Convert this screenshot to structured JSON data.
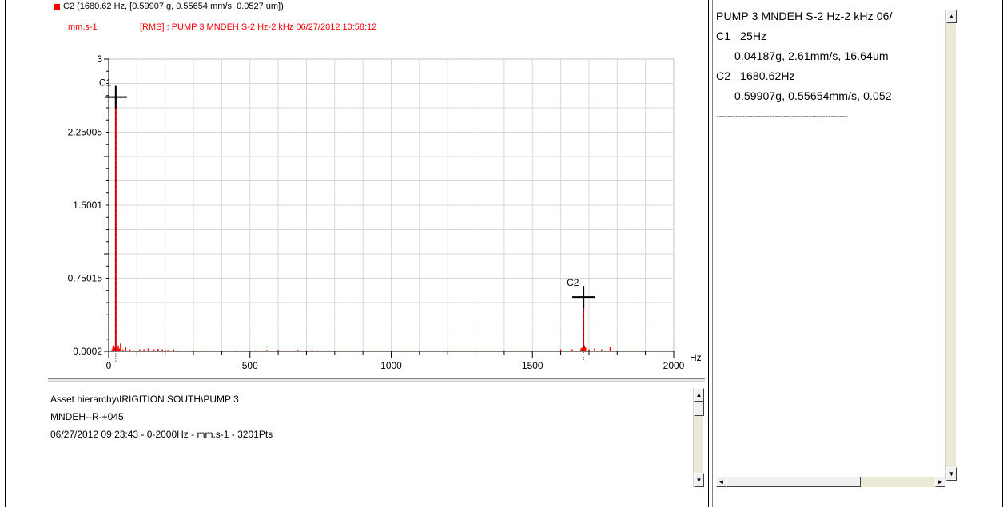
{
  "legend": {
    "cursor_line": "C2 (1680.62 Hz, [0.59907 g, 0.55654 mm/s, 0.0527 um])",
    "unit": "mm.s-1",
    "measurement": "[RMS] : PUMP 3 MNDEH S-2 Hz-2 kHz 06/27/2012 10:58:12",
    "color": "#ff0000"
  },
  "chart_data": {
    "type": "line",
    "xlabel": "Hz",
    "ylabel": "",
    "xlim": [
      0,
      2000
    ],
    "ylim": [
      0.0002,
      3
    ],
    "x_ticks": [
      0,
      500,
      1000,
      1500,
      2000
    ],
    "y_ticks": [
      "0.0002",
      "0.75015",
      "1.5001",
      "2.25005",
      "3"
    ],
    "y_tick_values": [
      0.0002,
      0.75015,
      1.5001,
      2.25005,
      3
    ],
    "grid": true,
    "series_color": "#ff0000",
    "series": [
      {
        "x": [
          12,
          15,
          18,
          22,
          25,
          27,
          30,
          34,
          38,
          42,
          50,
          60,
          75,
          90,
          110,
          125,
          140,
          160,
          175,
          190,
          200,
          210,
          230,
          245,
          300,
          340,
          400,
          450,
          520,
          560,
          600,
          640,
          670,
          700,
          720,
          740,
          760,
          780,
          1400,
          1600,
          1640,
          1672,
          1676,
          1680.62,
          1684,
          1688,
          1700,
          1720,
          1745,
          1775
        ],
        "y": [
          0.02,
          0.04,
          0.06,
          0.04,
          2.61,
          0.05,
          0.03,
          0.06,
          0.03,
          0.08,
          0.02,
          0.04,
          0.02,
          0.01,
          0.02,
          0.02,
          0.03,
          0.02,
          0.025,
          0.02,
          0.02,
          0.015,
          0.02,
          0.01,
          0.01,
          0.01,
          0.01,
          0.01,
          0.01,
          0.015,
          0.015,
          0.01,
          0.015,
          0.01,
          0.015,
          0.01,
          0.01,
          0.01,
          0.01,
          0.02,
          0.02,
          0.03,
          0.04,
          0.55654,
          0.06,
          0.04,
          0.02,
          0.03,
          0.02,
          0.05
        ]
      }
    ],
    "cursors": [
      {
        "label": "C1",
        "x": 25,
        "y": 2.61
      },
      {
        "label": "C2",
        "x": 1680.62,
        "y": 0.55654
      }
    ]
  },
  "info": {
    "line1": "Asset hierarchy\\IRIGITION SOUTH\\PUMP 3",
    "line2": "MNDEH--R-+045",
    "line3": "06/27/2012 09:23:43 - 0-2000Hz - mm.s-1 - 3201Pts"
  },
  "right_panel": {
    "title": "PUMP 3 MNDEH S-2 Hz-2 kHz 06/",
    "c1_header": "C1   25Hz",
    "c1_values": "0.04187g, 2.61mm/s, 16.64um",
    "c2_header": "C2   1680.62Hz",
    "c2_values": "0.59907g, 0.55654mm/s, 0.052",
    "separator": "-----------------------------------------------"
  },
  "scroll_glyphs": {
    "up": "▲",
    "down": "▼",
    "left": "◄",
    "right": "►"
  }
}
